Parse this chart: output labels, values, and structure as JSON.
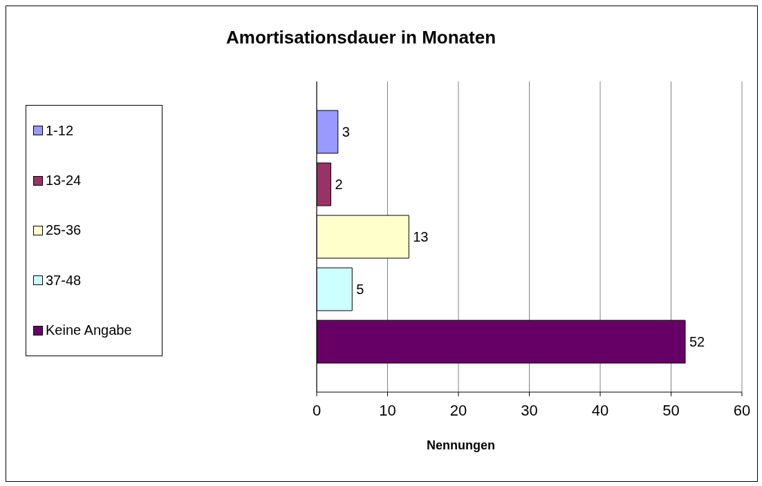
{
  "chart_data": {
    "type": "bar",
    "orientation": "horizontal",
    "title": "Amortisationsdauer in Monaten",
    "xlabel": "Nennungen",
    "categories": [
      null
    ],
    "series": [
      {
        "name": "1-12",
        "color": "#9999ff",
        "values": [
          3
        ]
      },
      {
        "name": "13-24",
        "color": "#993366",
        "values": [
          2
        ]
      },
      {
        "name": "25-36",
        "color": "#ffffcc",
        "values": [
          13
        ]
      },
      {
        "name": "37-48",
        "color": "#ccffff",
        "values": [
          5
        ]
      },
      {
        "name": "Keine Angabe",
        "color": "#660066",
        "values": [
          52
        ]
      }
    ],
    "xlim": [
      0,
      60
    ],
    "xticks": [
      0,
      10,
      20,
      30,
      40,
      50,
      60
    ],
    "grid": "x",
    "legend": "left",
    "data_labels": true
  }
}
